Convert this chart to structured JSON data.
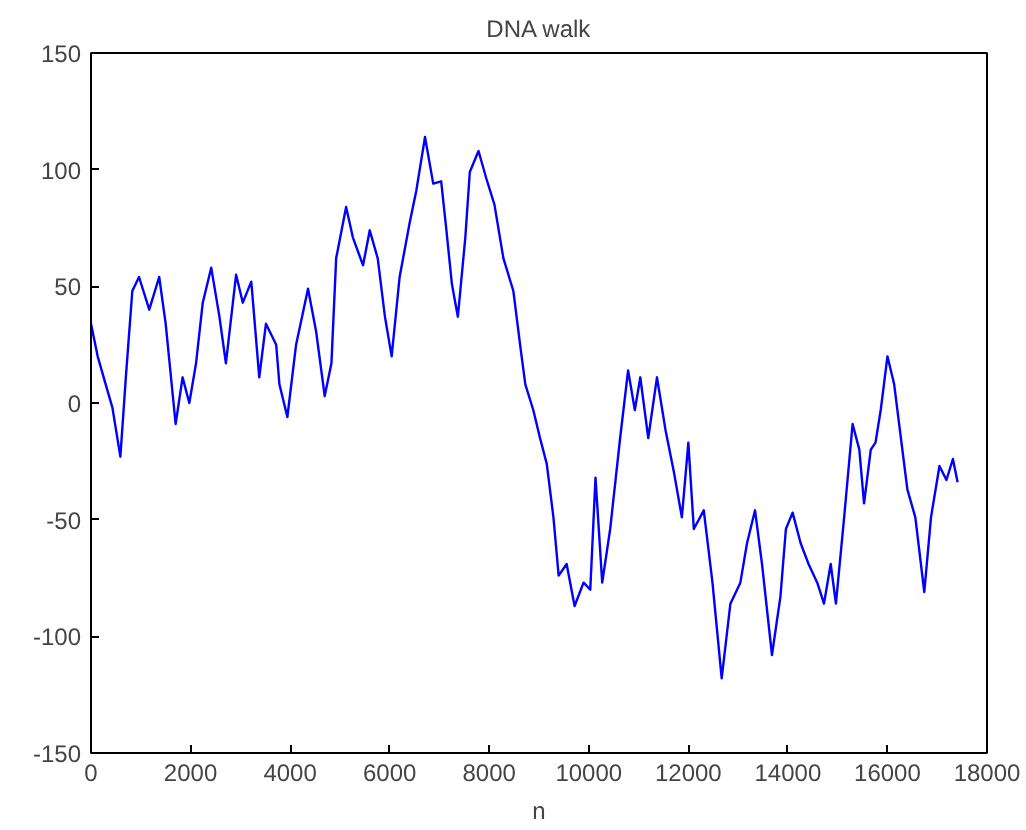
{
  "chart_data": {
    "type": "line",
    "title": "DNA walk",
    "xlabel": "n",
    "x": [
      0,
      134,
      295,
      430,
      590,
      700,
      830,
      965,
      1170,
      1370,
      1500,
      1700,
      1840,
      1975,
      2110,
      2245,
      2415,
      2580,
      2710,
      2915,
      3050,
      3220,
      3380,
      3515,
      3720,
      3785,
      3945,
      4120,
      4360,
      4520,
      4695,
      4830,
      4925,
      5125,
      5260,
      5465,
      5600,
      5760,
      5905,
      6040,
      6200,
      6400,
      6535,
      6710,
      6875,
      7035,
      7140,
      7250,
      7370,
      7520,
      7610,
      7785,
      7945,
      8105,
      8285,
      8485,
      8620,
      8725,
      8885,
      9020,
      9155,
      9290,
      9395,
      9555,
      9715,
      9895,
      10030,
      10135,
      10270,
      10430,
      10630,
      10790,
      10925,
      11035,
      11195,
      11370,
      11545,
      11705,
      11870,
      12000,
      12110,
      12310,
      12485,
      12670,
      12845,
      13045,
      13180,
      13340,
      13480,
      13680,
      13850,
      13960,
      14095,
      14255,
      14415,
      14590,
      14725,
      14860,
      14965,
      15130,
      15300,
      15435,
      15530,
      15665,
      15760,
      15865,
      16000,
      16135,
      16270,
      16400,
      16560,
      16740,
      16875,
      17045,
      17185,
      17315,
      17410
    ],
    "series": [
      {
        "color": "#0000ff",
        "values": [
          34,
          20,
          8,
          -2,
          -23,
          11,
          48,
          54,
          40,
          54,
          34,
          -9,
          11,
          0,
          17,
          43,
          58,
          37,
          17,
          55,
          43,
          52,
          11,
          34,
          25,
          8,
          -6,
          25,
          49,
          31,
          3,
          17,
          62,
          84,
          71,
          59,
          74,
          62,
          37,
          20,
          54,
          77,
          91,
          114,
          94,
          95,
          74,
          51,
          37,
          71,
          99,
          108,
          96,
          85,
          62,
          48,
          25,
          8,
          -3,
          -15,
          -26,
          -49,
          -74,
          -69,
          -87,
          -77,
          -80,
          -32,
          -77,
          -54,
          -15,
          14,
          -3,
          11,
          -15,
          11,
          -12,
          -29,
          -49,
          -17,
          -54,
          -46,
          -77,
          -118,
          -86,
          -77,
          -60,
          -46,
          -69,
          -108,
          -83,
          -54,
          -47,
          -60,
          -69,
          -77,
          -86,
          -69,
          -86,
          -49,
          -9,
          -20,
          -43,
          -20,
          -17,
          -3,
          20,
          8,
          -15,
          -37,
          -49,
          -81,
          -49,
          -27,
          -33,
          -24,
          -34
        ]
      }
    ],
    "xlim": [
      0,
      18000
    ],
    "xticks": [
      0,
      2000,
      4000,
      6000,
      8000,
      10000,
      12000,
      14000,
      16000,
      18000
    ],
    "ylim": [
      -150,
      150
    ],
    "yticks": [
      -150,
      -100,
      -50,
      0,
      50,
      100,
      150
    ],
    "line_style": "solid"
  }
}
